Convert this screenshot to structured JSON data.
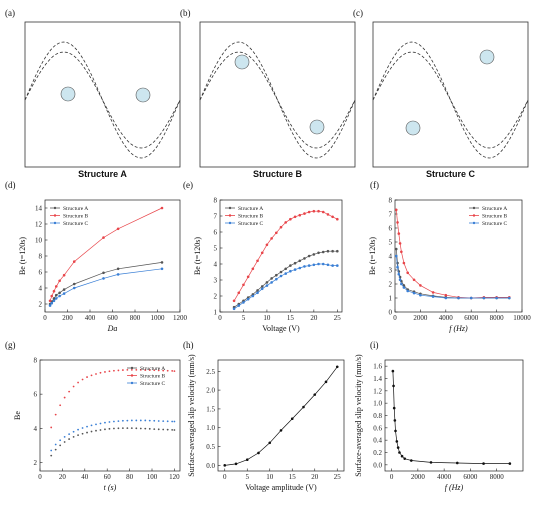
{
  "structure_panels": [
    {
      "label": "(a)",
      "title": "Structure A"
    },
    {
      "label": "(b)",
      "title": "Structure B"
    },
    {
      "label": "(c)",
      "title": "Structure C"
    }
  ],
  "colors": {
    "A": "#555555",
    "B": "#e8454a",
    "C": "#3a7fd5",
    "single": "#111111",
    "particle_fill": "#cde6ef"
  },
  "chart_data": [
    {
      "panel": "(d)",
      "type": "scatter",
      "xlabel": "Da",
      "ylabel": "Be (t=120s)",
      "xlim": [
        0,
        1200
      ],
      "ylim": [
        1,
        15
      ],
      "xticks": [
        0,
        200,
        400,
        600,
        800,
        1000,
        1200
      ],
      "yticks": [
        2,
        4,
        6,
        8,
        10,
        12,
        14
      ],
      "legend": "top-left",
      "series": [
        {
          "name": "Structure A",
          "key": "A",
          "x": [
            45,
            60,
            80,
            100,
            130,
            170,
            260,
            520,
            650,
            1040
          ],
          "y": [
            2.0,
            2.3,
            2.7,
            3.1,
            3.4,
            3.8,
            4.5,
            5.9,
            6.4,
            7.2
          ]
        },
        {
          "name": "Structure B",
          "key": "B",
          "x": [
            45,
            60,
            80,
            100,
            130,
            170,
            260,
            520,
            650,
            1040
          ],
          "y": [
            2.4,
            3.0,
            3.6,
            4.2,
            4.9,
            5.6,
            7.3,
            10.3,
            11.4,
            14.0
          ]
        },
        {
          "name": "Structure C",
          "key": "C",
          "x": [
            45,
            60,
            80,
            100,
            130,
            170,
            260,
            520,
            650,
            1040
          ],
          "y": [
            1.8,
            2.1,
            2.4,
            2.7,
            3.0,
            3.3,
            4.0,
            5.2,
            5.7,
            6.4
          ]
        }
      ]
    },
    {
      "panel": "(e)",
      "type": "line",
      "xlabel": "Voltage (V)",
      "ylabel": "Be (t=120s)",
      "xlim": [
        0,
        26
      ],
      "ylim": [
        1,
        8
      ],
      "xticks": [
        0,
        5,
        10,
        15,
        20,
        25
      ],
      "yticks": [
        1,
        2,
        3,
        4,
        5,
        6,
        7,
        8
      ],
      "legend": "top-left",
      "series": [
        {
          "name": "Structure A",
          "key": "A",
          "x": [
            3,
            4,
            5,
            6,
            7,
            8,
            9,
            10,
            11,
            12,
            13,
            14,
            15,
            16,
            17,
            18,
            19,
            20,
            21,
            22,
            23,
            24,
            25
          ],
          "y": [
            1.3,
            1.5,
            1.7,
            1.9,
            2.1,
            2.35,
            2.6,
            2.85,
            3.1,
            3.3,
            3.5,
            3.7,
            3.9,
            4.05,
            4.2,
            4.35,
            4.5,
            4.6,
            4.7,
            4.75,
            4.8,
            4.8,
            4.8
          ]
        },
        {
          "name": "Structure B",
          "key": "B",
          "x": [
            3,
            4,
            5,
            6,
            7,
            8,
            9,
            10,
            11,
            12,
            13,
            14,
            15,
            16,
            17,
            18,
            19,
            20,
            21,
            22,
            23,
            24,
            25
          ],
          "y": [
            1.7,
            2.2,
            2.7,
            3.2,
            3.7,
            4.2,
            4.7,
            5.2,
            5.6,
            5.95,
            6.3,
            6.6,
            6.8,
            6.95,
            7.05,
            7.15,
            7.25,
            7.3,
            7.3,
            7.25,
            7.1,
            6.95,
            6.8
          ]
        },
        {
          "name": "Structure C",
          "key": "C",
          "x": [
            3,
            4,
            5,
            6,
            7,
            8,
            9,
            10,
            11,
            12,
            13,
            14,
            15,
            16,
            17,
            18,
            19,
            20,
            21,
            22,
            23,
            24,
            25
          ],
          "y": [
            1.2,
            1.4,
            1.6,
            1.8,
            2.0,
            2.2,
            2.45,
            2.65,
            2.85,
            3.05,
            3.25,
            3.4,
            3.55,
            3.65,
            3.75,
            3.85,
            3.9,
            3.95,
            4.0,
            4.0,
            3.95,
            3.9,
            3.9
          ]
        }
      ]
    },
    {
      "panel": "(f)",
      "type": "line",
      "xlabel": "f (Hz)",
      "ylabel": "Be (t=120s)",
      "xlim": [
        0,
        10000
      ],
      "ylim": [
        0,
        8
      ],
      "xticks": [
        0,
        2000,
        4000,
        6000,
        8000,
        10000
      ],
      "yticks": [
        0,
        1,
        2,
        3,
        4,
        5,
        6,
        7,
        8
      ],
      "legend": "top-right",
      "series": [
        {
          "name": "Structure A",
          "key": "A",
          "x": [
            100,
            200,
            300,
            400,
            500,
            700,
            1000,
            1500,
            2000,
            3000,
            4000,
            5000,
            6000,
            7000,
            8000,
            9000
          ],
          "y": [
            4.5,
            3.5,
            2.9,
            2.5,
            2.2,
            1.9,
            1.6,
            1.45,
            1.3,
            1.15,
            1.05,
            1.0,
            1.0,
            1.0,
            1.0,
            1.0
          ]
        },
        {
          "name": "Structure B",
          "key": "B",
          "x": [
            100,
            200,
            300,
            400,
            500,
            700,
            1000,
            1500,
            2000,
            3000,
            4000,
            5000,
            6000,
            7000,
            8000,
            9000
          ],
          "y": [
            7.3,
            6.4,
            5.6,
            4.9,
            4.3,
            3.5,
            2.8,
            2.3,
            1.9,
            1.4,
            1.2,
            1.05,
            1.0,
            1.05,
            1.05,
            1.05
          ]
        },
        {
          "name": "Structure C",
          "key": "C",
          "x": [
            100,
            200,
            300,
            400,
            500,
            700,
            1000,
            1500,
            2000,
            3000,
            4000,
            5000,
            6000,
            7000,
            8000,
            9000
          ],
          "y": [
            4.0,
            3.2,
            2.7,
            2.3,
            2.0,
            1.75,
            1.5,
            1.35,
            1.2,
            1.1,
            1.0,
            1.0,
            1.0,
            1.0,
            1.0,
            1.0
          ]
        }
      ]
    },
    {
      "panel": "(g)",
      "type": "scatter",
      "xlabel": "t (s)",
      "ylabel": "Be",
      "xlim": [
        0,
        125
      ],
      "ylim": [
        1.5,
        8
      ],
      "xticks": [
        0,
        20,
        40,
        60,
        80,
        100,
        120
      ],
      "yticks": [
        2,
        4,
        6,
        8
      ],
      "legend": "top-right",
      "series": [
        {
          "name": "Structure A",
          "key": "A",
          "x": [
            10,
            14,
            18,
            22,
            26,
            30,
            34,
            38,
            42,
            46,
            50,
            54,
            58,
            62,
            66,
            70,
            74,
            78,
            82,
            86,
            90,
            94,
            98,
            102,
            106,
            110,
            114,
            118,
            120
          ],
          "y": [
            2.4,
            2.75,
            3.0,
            3.2,
            3.37,
            3.5,
            3.6,
            3.68,
            3.75,
            3.81,
            3.86,
            3.9,
            3.94,
            3.97,
            3.99,
            4.0,
            4.01,
            4.01,
            4.01,
            4.0,
            3.99,
            3.98,
            3.97,
            3.95,
            3.94,
            3.93,
            3.92,
            3.91,
            3.9
          ]
        },
        {
          "name": "Structure B",
          "key": "B",
          "x": [
            10,
            14,
            18,
            22,
            26,
            30,
            34,
            38,
            42,
            46,
            50,
            54,
            58,
            62,
            66,
            70,
            74,
            78,
            82,
            86,
            90,
            94,
            98,
            102,
            106,
            110,
            114,
            118,
            120
          ],
          "y": [
            4.05,
            4.8,
            5.35,
            5.8,
            6.15,
            6.45,
            6.68,
            6.86,
            7.0,
            7.1,
            7.18,
            7.25,
            7.3,
            7.34,
            7.37,
            7.39,
            7.41,
            7.42,
            7.42,
            7.42,
            7.42,
            7.41,
            7.41,
            7.4,
            7.39,
            7.38,
            7.37,
            7.36,
            7.35
          ]
        },
        {
          "name": "Structure C",
          "key": "C",
          "x": [
            10,
            14,
            18,
            22,
            26,
            30,
            34,
            38,
            42,
            46,
            50,
            54,
            58,
            62,
            66,
            70,
            74,
            78,
            82,
            86,
            90,
            94,
            98,
            102,
            106,
            110,
            114,
            118,
            120
          ],
          "y": [
            2.7,
            3.05,
            3.3,
            3.5,
            3.66,
            3.8,
            3.92,
            4.02,
            4.1,
            4.17,
            4.23,
            4.28,
            4.33,
            4.37,
            4.4,
            4.42,
            4.44,
            4.45,
            4.46,
            4.46,
            4.46,
            4.46,
            4.45,
            4.44,
            4.43,
            4.42,
            4.41,
            4.4,
            4.4
          ]
        }
      ]
    },
    {
      "panel": "(h)",
      "type": "line",
      "xlabel": "Voltage amplitude (V)",
      "ylabel": "Surface-averaged slip velocity (mm/s)",
      "xlim": [
        -1.5,
        26.5
      ],
      "ylim": [
        -0.15,
        2.8
      ],
      "xticks": [
        0,
        5,
        10,
        15,
        20,
        25
      ],
      "yticks": [
        0.0,
        0.5,
        1.0,
        1.5,
        2.0,
        2.5
      ],
      "series": [
        {
          "name": "",
          "key": "single",
          "x": [
            0,
            2.5,
            5,
            7.5,
            10,
            12.5,
            15,
            17.5,
            20,
            22.5,
            25
          ],
          "y": [
            0.0,
            0.04,
            0.15,
            0.33,
            0.6,
            0.93,
            1.24,
            1.55,
            1.88,
            2.22,
            2.62
          ]
        }
      ]
    },
    {
      "panel": "(i)",
      "type": "line",
      "xlabel": "f (Hz)",
      "ylabel": "Surface-averaged slip velocity (mm/s)",
      "xlim": [
        -500,
        10000
      ],
      "ylim": [
        -0.1,
        1.7
      ],
      "xticks": [
        0,
        2000,
        4000,
        6000,
        8000
      ],
      "yticks": [
        0.0,
        0.2,
        0.4,
        0.6,
        0.8,
        1.0,
        1.2,
        1.4,
        1.6
      ],
      "series": [
        {
          "name": "",
          "key": "single",
          "x": [
            100,
            150,
            200,
            250,
            300,
            400,
            500,
            600,
            800,
            1000,
            1500,
            3000,
            5000,
            7000,
            9000
          ],
          "y": [
            1.52,
            1.28,
            0.92,
            0.72,
            0.55,
            0.38,
            0.28,
            0.2,
            0.14,
            0.1,
            0.07,
            0.04,
            0.03,
            0.02,
            0.02
          ]
        }
      ]
    }
  ]
}
